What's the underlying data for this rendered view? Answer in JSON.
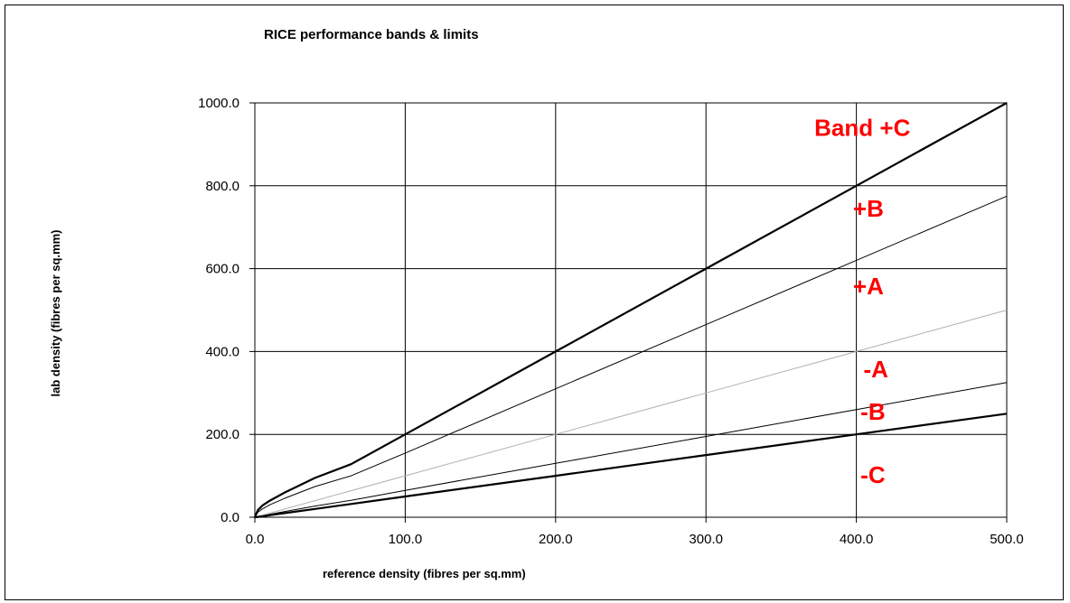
{
  "chart_data": {
    "type": "line",
    "title": "RICE performance bands & limits",
    "xlabel": "reference density (fibres per sq.mm)",
    "ylabel": "lab density (fibres per sq.mm)",
    "xlim": [
      0,
      500
    ],
    "ylim": [
      0,
      1000
    ],
    "x_ticks": [
      "0.0",
      "100.0",
      "200.0",
      "300.0",
      "400.0",
      "500.0"
    ],
    "y_ticks": [
      "0.0",
      "200.0",
      "400.0",
      "600.0",
      "800.0",
      "1000.0"
    ],
    "grid": true,
    "series": [
      {
        "x": [
          0,
          2,
          5,
          10,
          20,
          40,
          64,
          100,
          200,
          300,
          400,
          500
        ],
        "y": [
          0,
          17,
          28,
          40,
          60,
          95,
          128,
          200,
          400,
          600,
          800,
          1000
        ],
        "color": "#000000",
        "weight": "bold"
      },
      {
        "x": [
          0,
          2,
          5,
          10,
          20,
          40,
          64,
          100,
          200,
          300,
          400,
          500
        ],
        "y": [
          0,
          12,
          20,
          30,
          46,
          74,
          100,
          155,
          310,
          465,
          620,
          775
        ],
        "color": "#000000",
        "weight": "thin"
      },
      {
        "x": [
          0,
          100,
          200,
          300,
          400,
          500
        ],
        "y": [
          0,
          100,
          200,
          300,
          400,
          500
        ],
        "color": "#b0b0b0",
        "weight": "thin"
      },
      {
        "x": [
          0,
          5,
          10,
          20,
          40,
          64,
          100,
          200,
          300,
          400,
          500
        ],
        "y": [
          0,
          3,
          7,
          14,
          27,
          41,
          65,
          130,
          195,
          260,
          325
        ],
        "color": "#000000",
        "weight": "thin"
      },
      {
        "x": [
          0,
          5,
          10,
          20,
          40,
          64,
          100,
          200,
          300,
          400,
          500
        ],
        "y": [
          0,
          2,
          5,
          10,
          20,
          32,
          50,
          100,
          150,
          200,
          250
        ],
        "color": "#000000",
        "weight": "bold"
      }
    ],
    "annotations": [
      {
        "text": "Band +C",
        "x": 404,
        "y": 920
      },
      {
        "text": "+B",
        "x": 408,
        "y": 725
      },
      {
        "text": "+A",
        "x": 408,
        "y": 538
      },
      {
        "text": "-A",
        "x": 413,
        "y": 338
      },
      {
        "text": "-B",
        "x": 411,
        "y": 235
      },
      {
        "text": "-C",
        "x": 411,
        "y": 83
      }
    ]
  }
}
